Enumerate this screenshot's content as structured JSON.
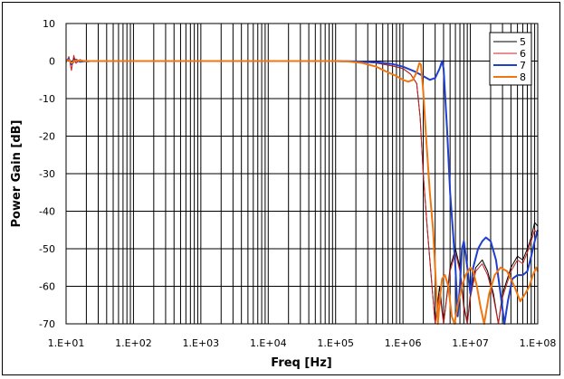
{
  "chart_data": {
    "type": "line",
    "xlabel": "Freq [Hz]",
    "ylabel": "Power Gain [dB]",
    "xscale": "log",
    "xlim": [
      10,
      100000000
    ],
    "ylim": [
      -70,
      10
    ],
    "x_ticks": [
      "1.E+01",
      "1.E+02",
      "1.E+03",
      "1.E+04",
      "1.E+05",
      "1.E+06",
      "1.E+07",
      "1.E+08"
    ],
    "y_ticks": [
      "10",
      "0",
      "-10",
      "-20",
      "-30",
      "-40",
      "-50",
      "-60",
      "-70"
    ],
    "grid": true,
    "legend_position": "top-right",
    "series": [
      {
        "name": "5",
        "color": "#000000",
        "width": 1,
        "points": [
          [
            10,
            0
          ],
          [
            11,
            0.5
          ],
          [
            12,
            -1
          ],
          [
            13,
            0.8
          ],
          [
            14,
            -0.5
          ],
          [
            16,
            0.3
          ],
          [
            20,
            -0.2
          ],
          [
            30,
            0
          ],
          [
            100,
            0
          ],
          [
            1000,
            0
          ],
          [
            10000,
            0
          ],
          [
            100000,
            0
          ],
          [
            200000,
            -0.1
          ],
          [
            400000,
            -0.5
          ],
          [
            700000,
            -1.3
          ],
          [
            1000000,
            -2
          ],
          [
            1300000,
            -3.5
          ],
          [
            1600000,
            -6
          ],
          [
            1800000,
            -15
          ],
          [
            2000000,
            -30
          ],
          [
            2300000,
            -45
          ],
          [
            2700000,
            -60
          ],
          [
            3000000,
            -70
          ],
          [
            3500000,
            -60
          ],
          [
            4000000,
            -70
          ],
          [
            5000000,
            -55
          ],
          [
            6000000,
            -50
          ],
          [
            7000000,
            -55
          ],
          [
            8000000,
            -65
          ],
          [
            9000000,
            -70
          ],
          [
            10000000,
            -62
          ],
          [
            12000000,
            -55
          ],
          [
            15000000,
            -53
          ],
          [
            18000000,
            -56
          ],
          [
            22000000,
            -62
          ],
          [
            26000000,
            -70
          ],
          [
            30000000,
            -62
          ],
          [
            40000000,
            -55
          ],
          [
            50000000,
            -52
          ],
          [
            60000000,
            -53
          ],
          [
            70000000,
            -50
          ],
          [
            80000000,
            -47
          ],
          [
            90000000,
            -43
          ],
          [
            100000000,
            -44
          ]
        ]
      },
      {
        "name": "6",
        "color": "#cc2222",
        "width": 1,
        "points": [
          [
            10,
            -0.5
          ],
          [
            11,
            1.2
          ],
          [
            12,
            -2.5
          ],
          [
            13,
            1.5
          ],
          [
            14,
            -0.6
          ],
          [
            16,
            0.4
          ],
          [
            20,
            -0.2
          ],
          [
            30,
            0
          ],
          [
            100,
            0
          ],
          [
            1000,
            0
          ],
          [
            10000,
            0
          ],
          [
            100000,
            0
          ],
          [
            200000,
            -0.1
          ],
          [
            400000,
            -0.5
          ],
          [
            700000,
            -1.3
          ],
          [
            1000000,
            -2
          ],
          [
            1300000,
            -3.5
          ],
          [
            1600000,
            -6
          ],
          [
            1800000,
            -15
          ],
          [
            2000000,
            -30
          ],
          [
            2300000,
            -45
          ],
          [
            2700000,
            -60
          ],
          [
            3000000,
            -70
          ],
          [
            3500000,
            -62
          ],
          [
            4000000,
            -70
          ],
          [
            5000000,
            -56
          ],
          [
            6000000,
            -51
          ],
          [
            7000000,
            -56
          ],
          [
            8000000,
            -66
          ],
          [
            9000000,
            -70
          ],
          [
            10000000,
            -63
          ],
          [
            12000000,
            -56
          ],
          [
            15000000,
            -54
          ],
          [
            18000000,
            -57
          ],
          [
            22000000,
            -63
          ],
          [
            26000000,
            -70
          ],
          [
            30000000,
            -63
          ],
          [
            40000000,
            -56
          ],
          [
            50000000,
            -53
          ],
          [
            60000000,
            -54
          ],
          [
            70000000,
            -51
          ],
          [
            80000000,
            -48
          ],
          [
            90000000,
            -45
          ],
          [
            100000000,
            -46
          ]
        ]
      },
      {
        "name": "7",
        "color": "#1f3fcc",
        "width": 2,
        "points": [
          [
            10,
            0
          ],
          [
            11,
            0.6
          ],
          [
            12,
            -0.8
          ],
          [
            14,
            0.4
          ],
          [
            16,
            -0.2
          ],
          [
            20,
            0
          ],
          [
            30,
            0
          ],
          [
            100,
            0
          ],
          [
            1000,
            0
          ],
          [
            10000,
            0
          ],
          [
            100000,
            0
          ],
          [
            200000,
            -0.1
          ],
          [
            400000,
            -0.3
          ],
          [
            700000,
            -0.8
          ],
          [
            1000000,
            -1.5
          ],
          [
            1500000,
            -2.8
          ],
          [
            2000000,
            -4
          ],
          [
            2500000,
            -5
          ],
          [
            3000000,
            -4.5
          ],
          [
            3500000,
            -2
          ],
          [
            3800000,
            0
          ],
          [
            4000000,
            -2
          ],
          [
            4500000,
            -18
          ],
          [
            5000000,
            -35
          ],
          [
            5500000,
            -45
          ],
          [
            6000000,
            -55
          ],
          [
            6500000,
            -68
          ],
          [
            7000000,
            -60
          ],
          [
            7500000,
            -50
          ],
          [
            8000000,
            -48
          ],
          [
            9000000,
            -55
          ],
          [
            10000000,
            -62
          ],
          [
            11000000,
            -55
          ],
          [
            13000000,
            -50
          ],
          [
            15000000,
            -48
          ],
          [
            17000000,
            -47
          ],
          [
            20000000,
            -48
          ],
          [
            24000000,
            -53
          ],
          [
            28000000,
            -62
          ],
          [
            32000000,
            -70
          ],
          [
            36000000,
            -64
          ],
          [
            42000000,
            -58
          ],
          [
            50000000,
            -57
          ],
          [
            60000000,
            -57
          ],
          [
            70000000,
            -56
          ],
          [
            80000000,
            -52
          ],
          [
            90000000,
            -48
          ],
          [
            100000000,
            -45
          ]
        ]
      },
      {
        "name": "8",
        "color": "#ee7711",
        "width": 2,
        "points": [
          [
            10,
            0
          ],
          [
            11,
            0.3
          ],
          [
            12,
            -0.5
          ],
          [
            14,
            0.2
          ],
          [
            20,
            0
          ],
          [
            30,
            0
          ],
          [
            100,
            0
          ],
          [
            1000,
            0
          ],
          [
            10000,
            0
          ],
          [
            100000,
            0
          ],
          [
            150000,
            -0.1
          ],
          [
            250000,
            -0.5
          ],
          [
            400000,
            -1.5
          ],
          [
            600000,
            -3
          ],
          [
            800000,
            -4
          ],
          [
            1000000,
            -5
          ],
          [
            1200000,
            -5.5
          ],
          [
            1400000,
            -5
          ],
          [
            1600000,
            -3
          ],
          [
            1750000,
            -0.5
          ],
          [
            1850000,
            -1
          ],
          [
            2000000,
            -8
          ],
          [
            2200000,
            -20
          ],
          [
            2500000,
            -35
          ],
          [
            2800000,
            -45
          ],
          [
            3100000,
            -60
          ],
          [
            3300000,
            -70
          ],
          [
            3500000,
            -64
          ],
          [
            3800000,
            -58
          ],
          [
            4200000,
            -57
          ],
          [
            4700000,
            -60
          ],
          [
            5300000,
            -68
          ],
          [
            5800000,
            -70
          ],
          [
            6500000,
            -65
          ],
          [
            7500000,
            -60
          ],
          [
            8500000,
            -57
          ],
          [
            10000000,
            -55
          ],
          [
            11000000,
            -56
          ],
          [
            12500000,
            -60
          ],
          [
            14000000,
            -65
          ],
          [
            16000000,
            -70
          ],
          [
            19000000,
            -62
          ],
          [
            23000000,
            -57
          ],
          [
            28000000,
            -55
          ],
          [
            35000000,
            -56
          ],
          [
            45000000,
            -60
          ],
          [
            55000000,
            -64
          ],
          [
            65000000,
            -62
          ],
          [
            75000000,
            -60
          ],
          [
            85000000,
            -57
          ],
          [
            95000000,
            -55
          ],
          [
            100000000,
            -56
          ]
        ]
      }
    ]
  }
}
